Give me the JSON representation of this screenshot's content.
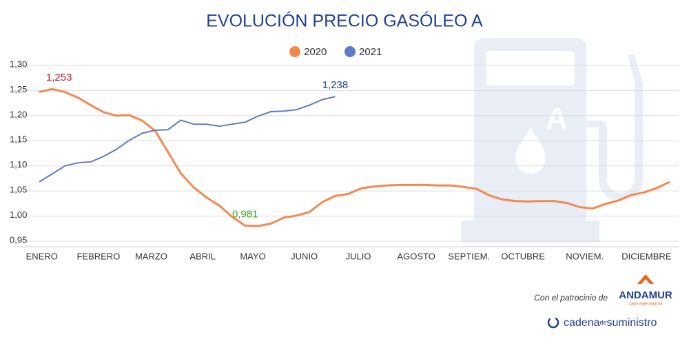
{
  "chart_data": {
    "type": "line",
    "title": "EVOLUCIÓN PRECIO GASÓLEO A",
    "x": [
      0,
      1,
      2,
      3,
      4,
      5,
      6,
      7,
      8,
      9,
      10,
      11,
      12,
      13,
      14,
      15,
      16,
      17,
      18,
      19,
      20,
      21,
      22,
      23,
      24,
      25,
      26,
      27,
      28,
      29,
      30,
      31,
      32,
      33,
      34,
      35,
      36,
      37,
      38,
      39,
      40,
      41,
      42,
      43,
      44,
      45,
      46,
      47,
      48,
      49
    ],
    "xlim": [
      0,
      49
    ],
    "xticks": [
      {
        "value": 0.2,
        "label": "ENERO"
      },
      {
        "value": 4.6,
        "label": "FEBRERO"
      },
      {
        "value": 8.7,
        "label": "MARZO"
      },
      {
        "value": 12.7,
        "label": "ABRIL"
      },
      {
        "value": 16.6,
        "label": "MAYO"
      },
      {
        "value": 20.6,
        "label": "JUNIO"
      },
      {
        "value": 24.8,
        "label": "JULIO"
      },
      {
        "value": 29.3,
        "label": "AGOSTO"
      },
      {
        "value": 33.4,
        "label": "SEPTIEM."
      },
      {
        "value": 37.6,
        "label": "OCTUBRE"
      },
      {
        "value": 42.4,
        "label": "NOVIEM."
      },
      {
        "value": 47.2,
        "label": "DICIEMBRE"
      }
    ],
    "ylim": [
      0.95,
      1.3
    ],
    "yticks": [
      {
        "value": 0.95,
        "label": "0,95"
      },
      {
        "value": 1.0,
        "label": "1,00"
      },
      {
        "value": 1.05,
        "label": "1,05"
      },
      {
        "value": 1.1,
        "label": "1,10"
      },
      {
        "value": 1.15,
        "label": "1,15"
      },
      {
        "value": 1.2,
        "label": "1,20"
      },
      {
        "value": 1.25,
        "label": "1,25"
      },
      {
        "value": 1.3,
        "label": "1,30"
      }
    ],
    "grid": true,
    "legend": "top",
    "series": [
      {
        "name": "2020",
        "color": "#f4884f",
        "values": [
          1.247,
          1.253,
          1.247,
          1.236,
          1.221,
          1.207,
          1.2,
          1.201,
          1.19,
          1.17,
          1.128,
          1.085,
          1.057,
          1.037,
          1.021,
          0.998,
          0.981,
          0.98,
          0.985,
          0.997,
          1.001,
          1.008,
          1.028,
          1.04,
          1.044,
          1.055,
          1.059,
          1.061,
          1.062,
          1.062,
          1.062,
          1.061,
          1.061,
          1.058,
          1.054,
          1.041,
          1.033,
          1.03,
          1.029,
          1.03,
          1.03,
          1.026,
          1.018,
          1.015,
          1.024,
          1.031,
          1.042,
          1.047,
          1.056,
          1.068
        ],
        "value_labels": [
          null,
          "1,253",
          null,
          null,
          null,
          null,
          null,
          null,
          null,
          null,
          null,
          null,
          null,
          null,
          null,
          null,
          "0,981",
          null,
          null,
          null,
          null,
          null,
          null,
          null,
          null,
          null,
          null,
          null,
          null,
          null,
          null,
          null,
          null,
          null,
          null,
          null,
          null,
          null,
          null,
          null,
          null,
          null,
          null,
          null,
          null,
          null,
          null,
          null,
          null,
          null
        ],
        "value_label_colors": [
          null,
          "#c8102e",
          null,
          null,
          null,
          null,
          null,
          null,
          null,
          null,
          null,
          null,
          null,
          null,
          null,
          null,
          "#3aaa1e",
          null,
          null,
          null,
          null,
          null,
          null,
          null,
          null,
          null,
          null,
          null,
          null,
          null,
          null,
          null,
          null,
          null,
          null,
          null,
          null,
          null,
          null,
          null,
          null,
          null,
          null,
          null,
          null,
          null,
          null,
          null,
          null,
          null
        ]
      },
      {
        "name": "2021",
        "color": "#5b7cc4",
        "values": [
          1.068,
          1.084,
          1.1,
          1.106,
          1.108,
          1.119,
          1.133,
          1.151,
          1.165,
          1.171,
          1.172,
          1.191,
          1.183,
          1.183,
          1.179,
          1.183,
          1.187,
          1.199,
          1.208,
          1.209,
          1.212,
          1.221,
          1.232,
          1.238,
          null,
          null,
          null,
          null,
          null,
          null,
          null,
          null,
          null,
          null,
          null,
          null,
          null,
          null,
          null,
          null,
          null,
          null,
          null,
          null,
          null,
          null,
          null,
          null,
          null,
          null
        ],
        "value_labels": [
          null,
          null,
          null,
          null,
          null,
          null,
          null,
          null,
          null,
          null,
          null,
          null,
          null,
          null,
          null,
          null,
          null,
          null,
          null,
          null,
          null,
          null,
          null,
          "1,238",
          null,
          null,
          null,
          null,
          null,
          null,
          null,
          null,
          null,
          null,
          null,
          null,
          null,
          null,
          null,
          null,
          null,
          null,
          null,
          null,
          null,
          null,
          null,
          null,
          null,
          null
        ],
        "value_label_colors": [
          null,
          null,
          null,
          null,
          null,
          null,
          null,
          null,
          null,
          null,
          null,
          null,
          null,
          null,
          null,
          null,
          null,
          null,
          null,
          null,
          null,
          null,
          null,
          "#1f3f99",
          null,
          null,
          null,
          null,
          null,
          null,
          null,
          null,
          null,
          null,
          null,
          null,
          null,
          null,
          null,
          null,
          null,
          null,
          null,
          null,
          null,
          null,
          null,
          null,
          null,
          null
        ]
      }
    ]
  },
  "footer": {
    "sponsor_text": "Con el patrocinio de",
    "sponsor_name": "ANDAMUR",
    "sponsor_tagline": "cada viaje importa",
    "publisher_a": "cadena",
    "publisher_b": "de",
    "publisher_c": "suministro"
  }
}
